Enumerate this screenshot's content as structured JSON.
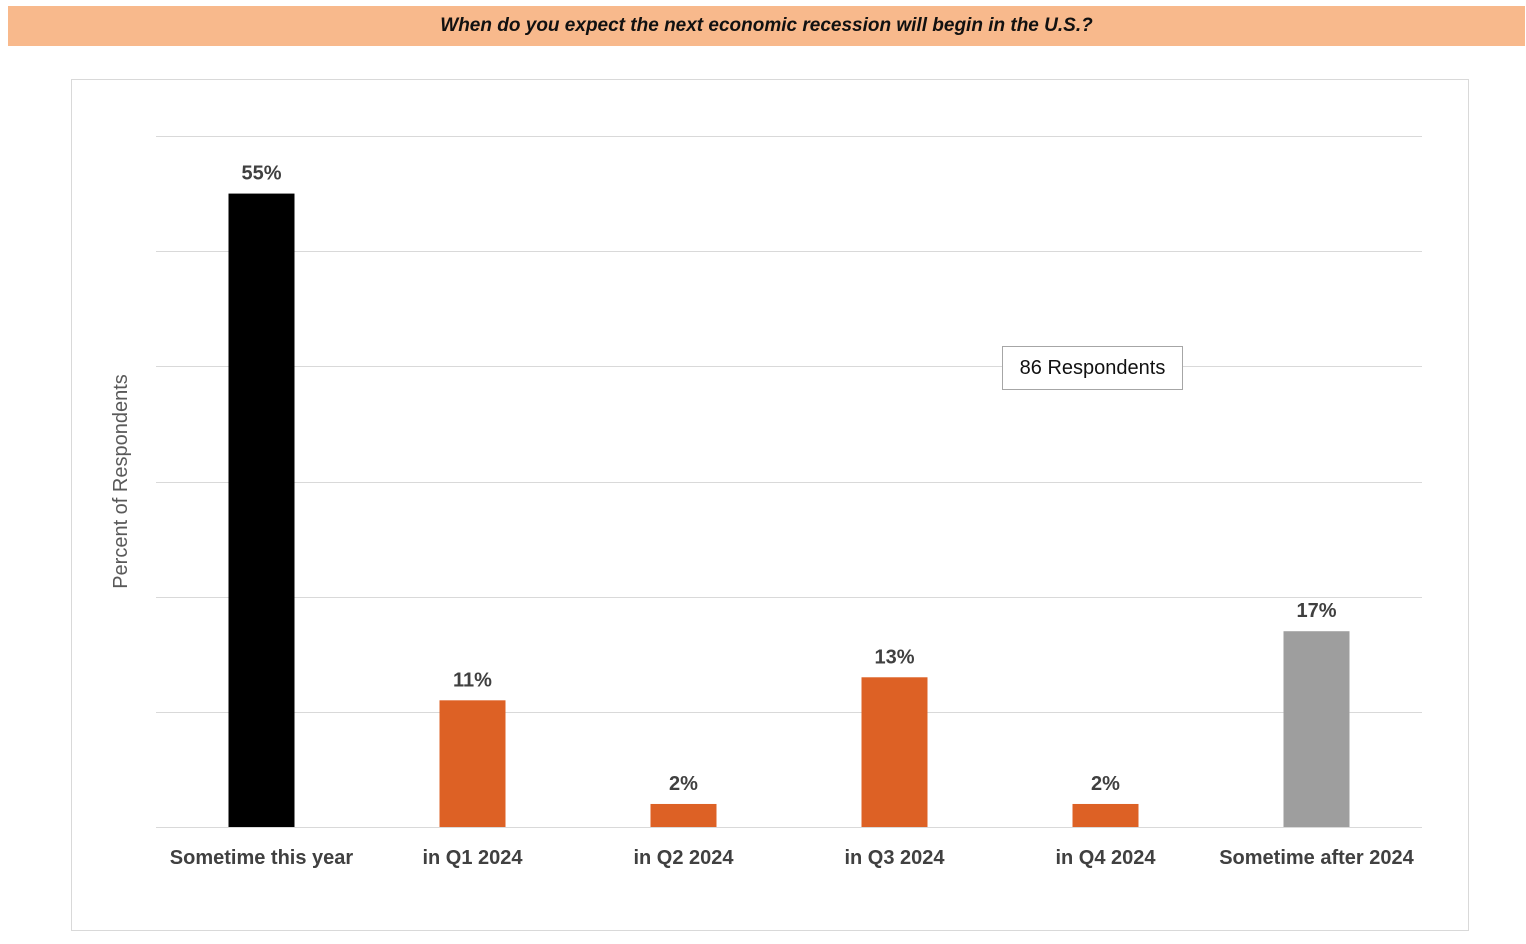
{
  "header": {
    "title": "When do you expect the next economic recession will begin in the U.S.?"
  },
  "annotation": {
    "respondents": "86 Respondents"
  },
  "colors": {
    "banner": "#f8b98c",
    "current_year_bar": "#000000",
    "quarter_bars": "#dd6125",
    "after_bar": "#9e9e9e",
    "gridline": "#d9d9d9",
    "label_text": "#404040"
  },
  "chart_data": {
    "type": "bar",
    "title": "When do you expect the next economic recession will begin in the U.S.?",
    "xlabel": "",
    "ylabel": "Percent of Respondents",
    "categories": [
      "Sometime this year",
      "in Q1 2024",
      "in Q2 2024",
      "in Q3 2024",
      "in Q4 2024",
      "Sometime after 2024"
    ],
    "values": [
      55,
      11,
      2,
      13,
      2,
      17
    ],
    "data_labels": [
      "55%",
      "11%",
      "2%",
      "13%",
      "2%",
      "17%"
    ],
    "bar_colors": [
      "#000000",
      "#dd6125",
      "#dd6125",
      "#dd6125",
      "#dd6125",
      "#9e9e9e"
    ],
    "ylim": [
      0,
      60
    ],
    "ytick_step": 10,
    "show_ytick_labels": false,
    "grid": true,
    "legend": "none"
  }
}
